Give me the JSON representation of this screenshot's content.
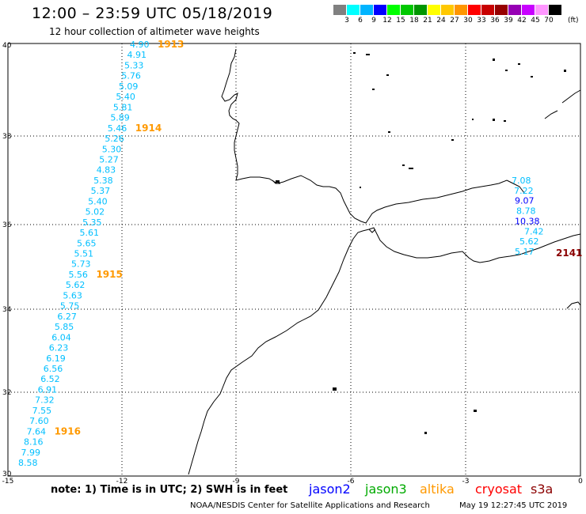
{
  "header": {
    "title": "12:00 – 23:59 UTC 05/18/2019",
    "subtitle": "12 hour collection of altimeter wave heights"
  },
  "colorbar": {
    "colors": [
      "#808080",
      "#00ffff",
      "#00b4ff",
      "#0000ff",
      "#00ff00",
      "#00c800",
      "#009600",
      "#ffff00",
      "#ffc800",
      "#ff9600",
      "#ff0000",
      "#c80000",
      "#960000",
      "#9600b4",
      "#c800ff",
      "#ff96ff",
      "#000000"
    ],
    "labels": [
      "3",
      "6",
      "9",
      "12",
      "15",
      "18",
      "21",
      "24",
      "27",
      "30",
      "33",
      "36",
      "39",
      "42",
      "45",
      "70"
    ],
    "units": "(ft)"
  },
  "axes": {
    "lat_labels": [
      "40",
      "38",
      "36",
      "34",
      "32",
      "30"
    ],
    "lon_labels": [
      "-15",
      "-12",
      "-9",
      "-6",
      "-3",
      "0"
    ]
  },
  "track_west": {
    "color": "#00bfff",
    "values": [
      "4.90",
      "4.91",
      "5.33",
      "5.76",
      "5.09",
      "5.40",
      "5.81",
      "5.89",
      "5.46",
      "5.26",
      "5.30",
      "5.27",
      "4.83",
      "5.38",
      "5.37",
      "5.40",
      "5.02",
      "5.35",
      "5.61",
      "5.65",
      "5.51",
      "5.73",
      "5.56",
      "5.62",
      "5.63",
      "5.75",
      "6.27",
      "5.85",
      "6.04",
      "6.23",
      "6.19",
      "6.56",
      "6.52",
      "6.91",
      "7.32",
      "7.55",
      "7.60",
      "7.64",
      "8.16",
      "7.99",
      "8.58"
    ],
    "time_tags": [
      {
        "text": "1913",
        "after_index": 0
      },
      {
        "text": "1914",
        "after_index": 8
      },
      {
        "text": "1915",
        "after_index": 22
      },
      {
        "text": "1916",
        "after_index": 37
      }
    ],
    "time_tag_color": "#ff9900"
  },
  "track_east": {
    "values": [
      {
        "text": "7.08",
        "color": "#00bfff"
      },
      {
        "text": "7.22",
        "color": "#00bfff"
      },
      {
        "text": "9.07",
        "color": "#0000ff"
      },
      {
        "text": "8.78",
        "color": "#00bfff"
      },
      {
        "text": "10.38",
        "color": "#0000ff"
      },
      {
        "text": "7.42",
        "color": "#00bfff"
      },
      {
        "text": "5.62",
        "color": "#00bfff"
      },
      {
        "text": "5.17",
        "color": "#00bfff"
      }
    ],
    "time_tag": {
      "text": "2141",
      "color": "#8b0000"
    }
  },
  "footer": {
    "note": "note:  1) Time is in UTC;  2) SWH is in feet",
    "legend": [
      {
        "label": "jason2",
        "color": "#0000ff"
      },
      {
        "label": "jason3",
        "color": "#00aa00"
      },
      {
        "label": "altika",
        "color": "#ff9900"
      },
      {
        "label": "cryosat",
        "color": "#ff0000"
      },
      {
        "label": "s3a",
        "color": "#8b0000"
      }
    ],
    "credit": "NOAA/NESDIS Center for Satellite Applications and Research",
    "timestamp": "May 19 12:27:45 UTC 2019"
  }
}
